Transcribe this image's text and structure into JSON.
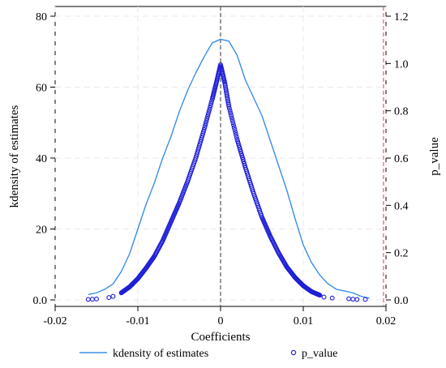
{
  "chart_data": {
    "type": "line",
    "xlabel": "Coefficients",
    "ylabel_left": "kdensity of estimates",
    "ylabel_right": "p_value",
    "xlim": [
      -0.02,
      0.02
    ],
    "ylim_left": [
      0,
      80
    ],
    "ylim_right": [
      0,
      1.2
    ],
    "x_ticks": [
      "-0.02",
      "-0.01",
      "0",
      "0.01",
      "0.02"
    ],
    "y_left_ticks": [
      "0.0",
      "20",
      "40",
      "60",
      "80"
    ],
    "y_right_ticks": [
      "0.0",
      "0.2",
      "0.4",
      "0.6",
      "0.8",
      "1.0",
      "1.2"
    ],
    "grid": true,
    "legend_position": "bottom",
    "reference_lines": [
      {
        "axis": "x",
        "value": 0,
        "style": "dashed",
        "color": "#555555"
      },
      {
        "axis": "x",
        "value": 0.0197,
        "style": "dashed",
        "color": "#e0665a"
      }
    ],
    "series": [
      {
        "name": "kdensity of estimates",
        "type": "line",
        "axis": "left",
        "color": "#3a8ee6",
        "points": [
          [
            -0.016,
            1.5
          ],
          [
            -0.015,
            2.0
          ],
          [
            -0.014,
            3.0
          ],
          [
            -0.013,
            4.5
          ],
          [
            -0.012,
            8.0
          ],
          [
            -0.011,
            13.0
          ],
          [
            -0.01,
            20.0
          ],
          [
            -0.009,
            27.0
          ],
          [
            -0.008,
            33.0
          ],
          [
            -0.007,
            40.0
          ],
          [
            -0.006,
            46.0
          ],
          [
            -0.005,
            53.0
          ],
          [
            -0.004,
            59.0
          ],
          [
            -0.003,
            64.0
          ],
          [
            -0.002,
            68.5
          ],
          [
            -0.001,
            72.5
          ],
          [
            0.0,
            73.5
          ],
          [
            0.001,
            73.0
          ],
          [
            0.002,
            69.0
          ],
          [
            0.003,
            62.0
          ],
          [
            0.004,
            57.0
          ],
          [
            0.005,
            52.0
          ],
          [
            0.006,
            45.0
          ],
          [
            0.007,
            38.0
          ],
          [
            0.008,
            31.0
          ],
          [
            0.009,
            23.0
          ],
          [
            0.01,
            15.5
          ],
          [
            0.011,
            10.5
          ],
          [
            0.012,
            7.0
          ],
          [
            0.013,
            4.5
          ],
          [
            0.014,
            3.0
          ],
          [
            0.015,
            2.5
          ],
          [
            0.016,
            2.0
          ],
          [
            0.017,
            1.0
          ],
          [
            0.018,
            0.5
          ]
        ]
      },
      {
        "name": "p_value",
        "type": "scatter",
        "axis": "right",
        "color": "#1f1fd6",
        "points": [
          [
            -0.016,
            0.002
          ],
          [
            -0.0155,
            0.003
          ],
          [
            -0.015,
            0.004
          ],
          [
            -0.0135,
            0.01
          ],
          [
            -0.013,
            0.015
          ],
          [
            -0.012,
            0.03
          ],
          [
            -0.011,
            0.055
          ],
          [
            -0.01,
            0.09
          ],
          [
            -0.009,
            0.135
          ],
          [
            -0.008,
            0.185
          ],
          [
            -0.007,
            0.25
          ],
          [
            -0.006,
            0.33
          ],
          [
            -0.005,
            0.41
          ],
          [
            -0.004,
            0.5
          ],
          [
            -0.003,
            0.6
          ],
          [
            -0.002,
            0.72
          ],
          [
            -0.001,
            0.85
          ],
          [
            -0.0005,
            0.92
          ],
          [
            0.0,
            0.995
          ],
          [
            0.0005,
            0.92
          ],
          [
            0.001,
            0.82
          ],
          [
            0.002,
            0.68
          ],
          [
            0.003,
            0.56
          ],
          [
            0.004,
            0.45
          ],
          [
            0.005,
            0.35
          ],
          [
            0.006,
            0.27
          ],
          [
            0.007,
            0.2
          ],
          [
            0.008,
            0.14
          ],
          [
            0.009,
            0.095
          ],
          [
            0.01,
            0.06
          ],
          [
            0.011,
            0.035
          ],
          [
            0.012,
            0.02
          ],
          [
            0.0125,
            0.012
          ],
          [
            0.0135,
            0.008
          ],
          [
            0.0155,
            0.005
          ],
          [
            0.016,
            0.003
          ],
          [
            0.0165,
            0.002
          ],
          [
            0.0175,
            0.002
          ]
        ]
      }
    ]
  }
}
